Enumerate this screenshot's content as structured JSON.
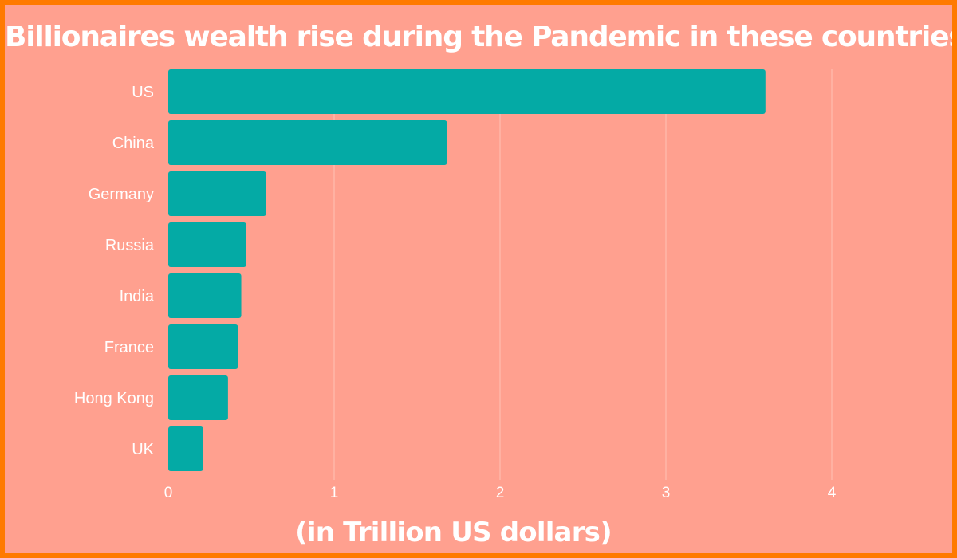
{
  "chart_data": {
    "type": "bar",
    "orientation": "horizontal",
    "title": "Billionaires wealth rise during the Pandemic in these countries",
    "xlabel": "(in Trillion US dollars)",
    "ylabel": "",
    "categories": [
      "US",
      "China",
      "Germany",
      "Russia",
      "India",
      "France",
      "Hong Kong",
      "UK"
    ],
    "values": [
      3.6,
      1.68,
      0.59,
      0.47,
      0.44,
      0.42,
      0.36,
      0.21
    ],
    "xlim": [
      0,
      4
    ],
    "x_ticks": [
      "0",
      "1",
      "2",
      "3",
      "4"
    ],
    "grid": true,
    "legend": "none"
  },
  "colors": {
    "bar": "#04AAA5",
    "background": "#FFA08F",
    "border": "#FF7A00",
    "text": "#FFFFFF",
    "grid": "#FFC2B5"
  }
}
